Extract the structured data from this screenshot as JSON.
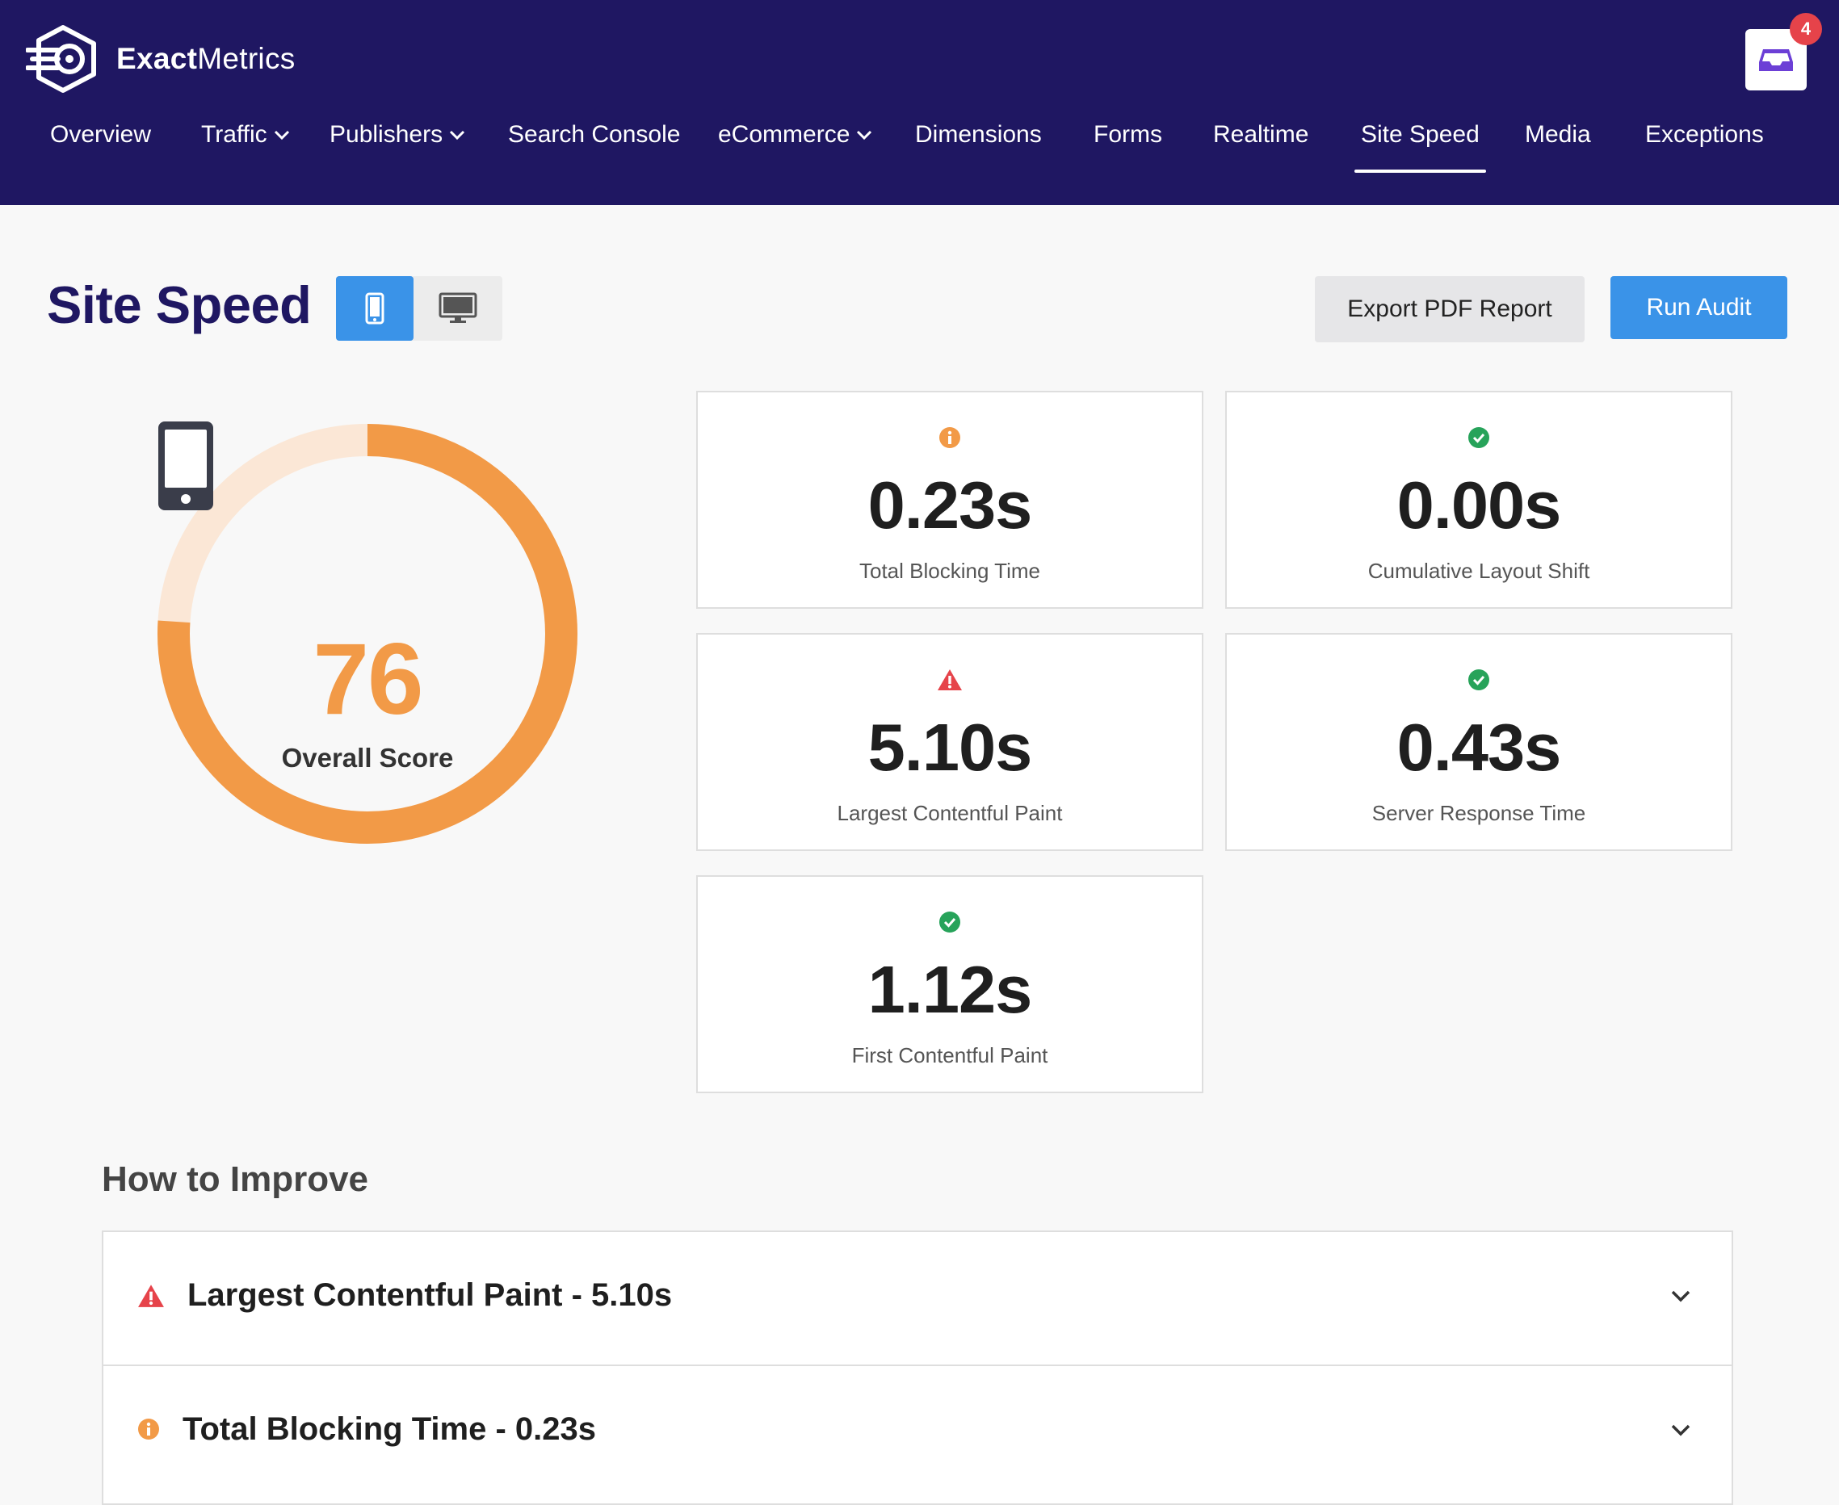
{
  "app": {
    "logo_bold": "Exact",
    "logo_rest": "Metrics",
    "notification_count": "4"
  },
  "nav": {
    "items": [
      {
        "label": "Overview"
      },
      {
        "label": "Traffic",
        "dropdown": true
      },
      {
        "label": "Publishers",
        "dropdown": true
      },
      {
        "label": "Search Console"
      },
      {
        "label": "eCommerce",
        "dropdown": true
      },
      {
        "label": "Dimensions"
      },
      {
        "label": "Forms"
      },
      {
        "label": "Realtime"
      },
      {
        "label": "Site Speed",
        "active": true
      },
      {
        "label": "Media"
      },
      {
        "label": "Exceptions"
      }
    ]
  },
  "page": {
    "title": "Site Speed",
    "device_selected": "mobile",
    "export_label": "Export PDF Report",
    "audit_label": "Run Audit"
  },
  "score": {
    "value": "76",
    "fraction": 0.76,
    "label": "Overall Score",
    "color": "#f29a47",
    "track_color": "#fbe7d6"
  },
  "metrics": [
    {
      "value": "0.23s",
      "label": "Total Blocking Time",
      "status": "info",
      "icon": "info-icon"
    },
    {
      "value": "0.00s",
      "label": "Cumulative Layout Shift",
      "status": "good",
      "icon": "check-circle-icon"
    },
    {
      "value": "5.10s",
      "label": "Largest Contentful Paint",
      "status": "bad",
      "icon": "warning-icon"
    },
    {
      "value": "0.43s",
      "label": "Server Response Time",
      "status": "good",
      "icon": "check-circle-icon"
    },
    {
      "value": "1.12s",
      "label": "First Contentful Paint",
      "status": "good",
      "icon": "check-circle-icon"
    }
  ],
  "improve": {
    "title": "How to Improve",
    "items": [
      {
        "label": "Largest Contentful Paint - 5.10s",
        "status": "bad",
        "icon": "warning-icon"
      },
      {
        "label": "Total Blocking Time - 0.23s",
        "status": "info",
        "icon": "info-icon"
      }
    ]
  },
  "colors": {
    "header_bg": "#1f1762",
    "primary_blue": "#3a93e8",
    "good": "#27a35a",
    "info": "#f29a47",
    "bad": "#e6434a"
  }
}
